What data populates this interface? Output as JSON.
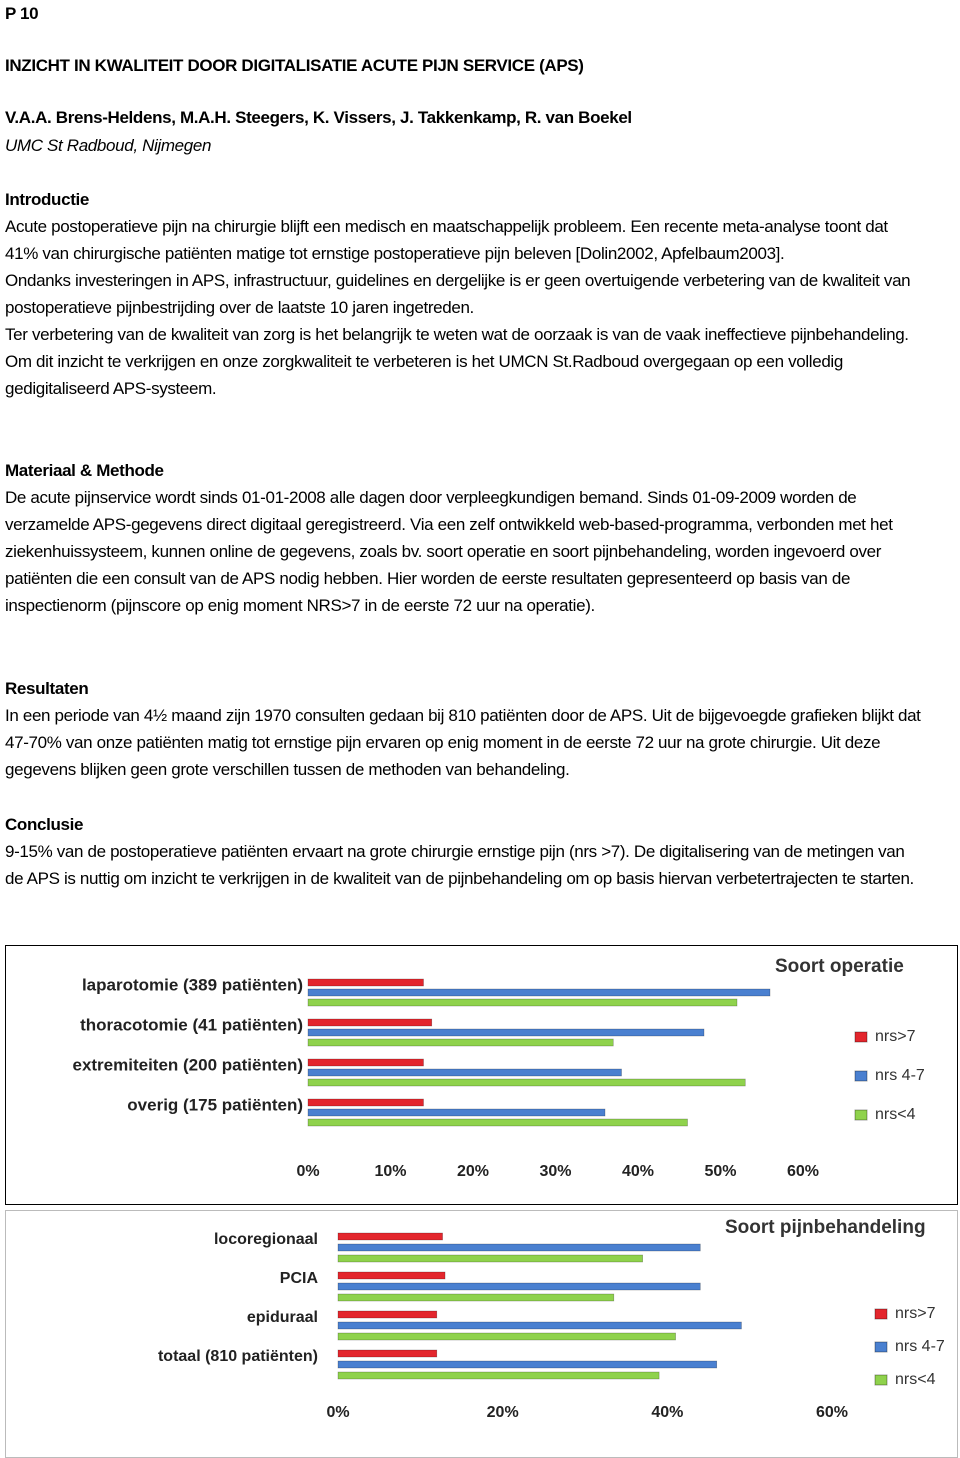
{
  "page_label": "P 10",
  "title": "INZICHT IN KWALITEIT DOOR DIGITALISATIE ACUTE PIJN SERVICE (APS)",
  "authors": "V.A.A. Brens-Heldens, M.A.H. Steegers, K. Vissers, J. Takkenkamp, R. van Boekel",
  "affiliation": "UMC St Radboud, Nijmegen",
  "sections": [
    {
      "heading": "Introductie",
      "paragraphs": [
        "Acute postoperatieve pijn na chirurgie blijft een medisch en maatschappelijk probleem. Een recente meta-analyse toont dat 41% van chirurgische patiënten matige tot ernstige postoperatieve pijn beleven [Dolin2002, Apfelbaum2003].",
        "Ondanks investeringen in APS, infrastructuur, guidelines en dergelijke is er geen overtuigende verbetering van de kwaliteit van postoperatieve pijnbestrijding over de laatste 10 jaren ingetreden.",
        "Ter verbetering van de kwaliteit van zorg is het belangrijk te weten wat de oorzaak is van de vaak ineffectieve pijnbehandeling. Om dit inzicht te verkrijgen en onze zorgkwaliteit te verbeteren is het UMCN St.Radboud overgegaan op een volledig gedigitaliseerd APS-systeem."
      ]
    },
    {
      "heading": "Materiaal & Methode",
      "paragraphs": [
        "De acute pijnservice wordt sinds 01-01-2008 alle dagen door verpleegkundigen bemand. Sinds 01-09-2009 worden de verzamelde APS-gegevens direct digitaal geregistreerd. Via een zelf ontwikkeld web-based-programma, verbonden met het ziekenhuissysteem, kunnen online de gegevens, zoals bv. soort operatie en soort pijnbehandeling, worden ingevoerd over patiënten die een consult van de APS nodig hebben. Hier worden de eerste resultaten gepresenteerd op basis van de inspectienorm (pijnscore op enig moment NRS>7 in de eerste 72 uur na operatie)."
      ]
    },
    {
      "heading": "Resultaten",
      "paragraphs": [
        "In een periode van 4½ maand zijn 1970 consulten gedaan bij 810 patiënten door de APS. Uit de bijgevoegde grafieken blijkt dat 47-70% van onze patiënten matig tot ernstige pijn ervaren op enig moment in de eerste 72 uur na grote chirurgie. Uit deze gegevens blijken geen grote verschillen tussen de methoden van behandeling."
      ]
    },
    {
      "heading": "Conclusie",
      "paragraphs": [
        "9-15% van de postoperatieve patiënten ervaart na grote chirurgie ernstige pijn (nrs >7). De digitalisering van de metingen van de APS is nuttig om inzicht te verkrijgen in de kwaliteit van de pijnbehandeling om op basis hiervan verbetertrajecten te starten."
      ]
    }
  ],
  "chart_data": [
    {
      "type": "hbar",
      "title": "Soort operatie",
      "categories": [
        "laparotomie (389 patiënten)",
        "thoracotomie (41 patiënten)",
        "extremiteiten (200 patiënten)",
        "overig (175 patiënten)"
      ],
      "series": [
        {
          "name": "nrs>7",
          "color": "#e3262d",
          "values": [
            14,
            15,
            14,
            14
          ]
        },
        {
          "name": "nrs 4-7",
          "color": "#4a80d0",
          "values": [
            56,
            48,
            38,
            36
          ]
        },
        {
          "name": "nrs<4",
          "color": "#8fd24c",
          "values": [
            52,
            37,
            53,
            46
          ]
        }
      ],
      "xlim": [
        0,
        60
      ],
      "xticks": [
        {
          "value": 0,
          "label": "0%"
        },
        {
          "value": 10,
          "label": "10%"
        },
        {
          "value": 20,
          "label": "20%"
        },
        {
          "value": 30,
          "label": "30%"
        },
        {
          "value": 40,
          "label": "40%"
        },
        {
          "value": 50,
          "label": "50%"
        },
        {
          "value": 60,
          "label": "60%"
        }
      ],
      "legend": "right"
    },
    {
      "type": "hbar",
      "title": "Soort pijnbehandeling",
      "categories": [
        "locoregionaal",
        "PCIA",
        "epiduraal",
        "totaal (810 patiënten)"
      ],
      "series": [
        {
          "name": "nrs>7",
          "color": "#e3262d",
          "values": [
            12.7,
            13,
            12,
            12
          ]
        },
        {
          "name": "nrs 4-7",
          "color": "#4a80d0",
          "values": [
            44,
            44,
            49,
            46
          ]
        },
        {
          "name": "nrs<4",
          "color": "#8fd24c",
          "values": [
            37,
            33.5,
            41,
            39
          ]
        }
      ],
      "xlim": [
        0,
        60
      ],
      "xticks": [
        {
          "value": 0,
          "label": "0%"
        },
        {
          "value": 20,
          "label": "20%"
        },
        {
          "value": 40,
          "label": "40%"
        },
        {
          "value": 60,
          "label": "60%"
        }
      ],
      "legend": "right"
    }
  ]
}
